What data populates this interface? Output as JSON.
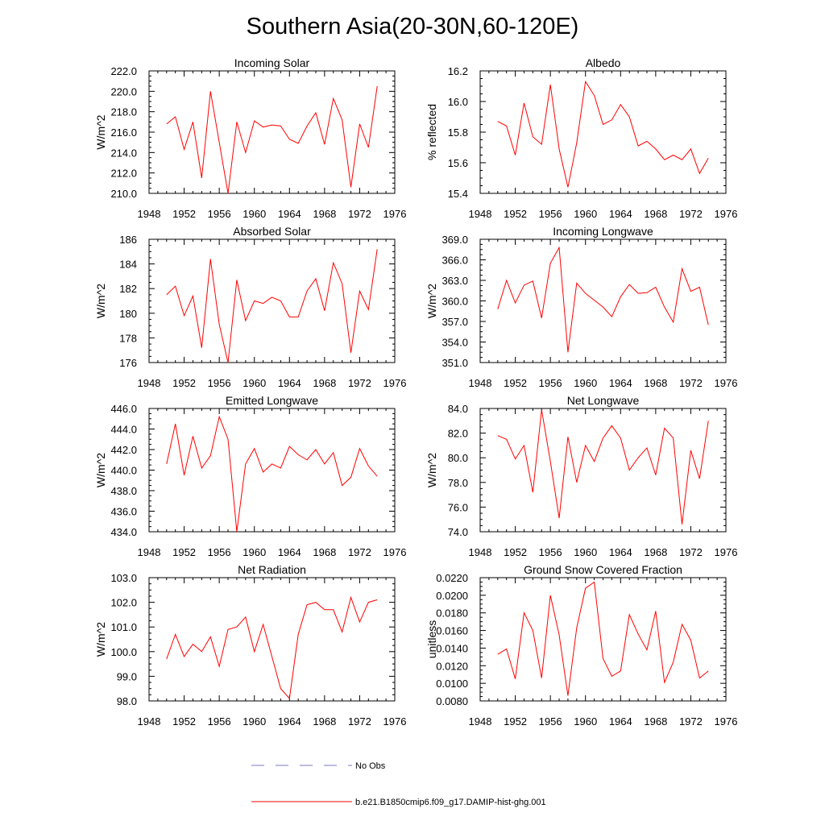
{
  "figure": {
    "title": "Southern Asia(20-30N,60-120E)",
    "legend": {
      "items": [
        {
          "label": "No Obs",
          "style": "dashed",
          "color": "#7777bb"
        },
        {
          "label": "b.e21.B1850cmip6.f09_g17.DAMIP-hist-ghg.001",
          "style": "solid",
          "color": "#ff0000"
        }
      ]
    }
  },
  "chart_data": [
    {
      "type": "line",
      "title": "Incoming Solar",
      "ylabel": "W/m^2",
      "xlim": [
        1948,
        1976
      ],
      "xticks": [
        1948,
        1952,
        1956,
        1960,
        1964,
        1968,
        1972,
        1976
      ],
      "ylim": [
        210,
        222
      ],
      "yticks": [
        "210.0",
        "212.0",
        "214.0",
        "216.0",
        "218.0",
        "220.0",
        "222.0"
      ],
      "x": [
        1950,
        1951,
        1952,
        1953,
        1954,
        1955,
        1956,
        1957,
        1958,
        1959,
        1960,
        1961,
        1962,
        1963,
        1964,
        1965,
        1966,
        1967,
        1968,
        1969,
        1970,
        1971,
        1972,
        1973,
        1974
      ],
      "series": [
        {
          "name": "b.e21.B1850cmip6.f09_g17.DAMIP-hist-ghg.001",
          "color": "#ff0000",
          "values": [
            216.8,
            217.5,
            214.3,
            217.0,
            211.5,
            220.0,
            215.0,
            210.0,
            217.0,
            214.0,
            217.1,
            216.5,
            216.7,
            216.6,
            215.3,
            214.9,
            216.6,
            217.9,
            214.8,
            219.3,
            217.2,
            210.6,
            216.8,
            214.5,
            220.5
          ]
        }
      ]
    },
    {
      "type": "line",
      "title": "Albedo",
      "ylabel": "% reflected",
      "xlim": [
        1948,
        1976
      ],
      "xticks": [
        1948,
        1952,
        1956,
        1960,
        1964,
        1968,
        1972,
        1976
      ],
      "ylim": [
        15.4,
        16.2
      ],
      "yticks": [
        "15.4",
        "15.6",
        "15.8",
        "16.0",
        "16.2"
      ],
      "x": [
        1950,
        1951,
        1952,
        1953,
        1954,
        1955,
        1956,
        1957,
        1958,
        1959,
        1960,
        1961,
        1962,
        1963,
        1964,
        1965,
        1966,
        1967,
        1968,
        1969,
        1970,
        1971,
        1972,
        1973,
        1974
      ],
      "series": [
        {
          "name": "b.e21.B1850cmip6.f09_g17.DAMIP-hist-ghg.001",
          "color": "#ff0000",
          "values": [
            15.87,
            15.84,
            15.65,
            15.99,
            15.77,
            15.72,
            16.11,
            15.69,
            15.44,
            15.73,
            16.13,
            16.04,
            15.85,
            15.88,
            15.98,
            15.9,
            15.71,
            15.74,
            15.69,
            15.62,
            15.65,
            15.62,
            15.69,
            15.53,
            15.63
          ]
        }
      ]
    },
    {
      "type": "line",
      "title": "Absorbed Solar",
      "ylabel": "W/m^2",
      "xlim": [
        1948,
        1976
      ],
      "xticks": [
        1948,
        1952,
        1956,
        1960,
        1964,
        1968,
        1972,
        1976
      ],
      "ylim": [
        176,
        186
      ],
      "yticks": [
        "176",
        "178",
        "180",
        "182",
        "184",
        "186"
      ],
      "x": [
        1950,
        1951,
        1952,
        1953,
        1954,
        1955,
        1956,
        1957,
        1958,
        1959,
        1960,
        1961,
        1962,
        1963,
        1964,
        1965,
        1966,
        1967,
        1968,
        1969,
        1970,
        1971,
        1972,
        1973,
        1974
      ],
      "series": [
        {
          "name": "b.e21.B1850cmip6.f09_g17.DAMIP-hist-ghg.001",
          "color": "#ff0000",
          "values": [
            181.5,
            182.2,
            179.8,
            181.4,
            177.2,
            184.4,
            179.1,
            176.0,
            182.7,
            179.4,
            181.0,
            180.8,
            181.3,
            181.0,
            179.7,
            179.7,
            181.8,
            182.8,
            180.2,
            184.1,
            182.4,
            176.8,
            181.8,
            180.3,
            185.2
          ]
        }
      ]
    },
    {
      "type": "line",
      "title": "Incoming Longwave",
      "ylabel": "W/m^2",
      "xlim": [
        1948,
        1976
      ],
      "xticks": [
        1948,
        1952,
        1956,
        1960,
        1964,
        1968,
        1972,
        1976
      ],
      "ylim": [
        351,
        369
      ],
      "yticks": [
        "351.0",
        "354.0",
        "357.0",
        "360.0",
        "363.0",
        "366.0",
        "369.0"
      ],
      "x": [
        1950,
        1951,
        1952,
        1953,
        1954,
        1955,
        1956,
        1957,
        1958,
        1959,
        1960,
        1961,
        1962,
        1963,
        1964,
        1965,
        1966,
        1967,
        1968,
        1969,
        1970,
        1971,
        1972,
        1973,
        1974
      ],
      "series": [
        {
          "name": "b.e21.B1850cmip6.f09_g17.DAMIP-hist-ghg.001",
          "color": "#ff0000",
          "values": [
            358.8,
            363.0,
            359.7,
            362.3,
            362.9,
            357.5,
            365.5,
            367.8,
            352.5,
            362.6,
            361.1,
            360.1,
            359.1,
            357.7,
            360.6,
            362.4,
            361.1,
            361.2,
            362.0,
            359.1,
            356.9,
            364.7,
            361.4,
            362.0,
            356.5
          ]
        }
      ]
    },
    {
      "type": "line",
      "title": "Emitted Longwave",
      "ylabel": "W/m^2",
      "xlim": [
        1948,
        1976
      ],
      "xticks": [
        1948,
        1952,
        1956,
        1960,
        1964,
        1968,
        1972,
        1976
      ],
      "ylim": [
        434,
        446
      ],
      "yticks": [
        "434.0",
        "436.0",
        "438.0",
        "440.0",
        "442.0",
        "444.0",
        "446.0"
      ],
      "x": [
        1950,
        1951,
        1952,
        1953,
        1954,
        1955,
        1956,
        1957,
        1958,
        1959,
        1960,
        1961,
        1962,
        1963,
        1964,
        1965,
        1966,
        1967,
        1968,
        1969,
        1970,
        1971,
        1972,
        1973,
        1974
      ],
      "series": [
        {
          "name": "b.e21.B1850cmip6.f09_g17.DAMIP-hist-ghg.001",
          "color": "#ff0000",
          "values": [
            440.6,
            444.5,
            439.5,
            443.3,
            440.2,
            441.4,
            445.2,
            443.0,
            434.0,
            440.6,
            442.1,
            439.8,
            440.6,
            440.2,
            442.3,
            441.5,
            441.0,
            442.0,
            440.6,
            441.7,
            438.5,
            439.3,
            442.1,
            440.4,
            439.4
          ]
        }
      ]
    },
    {
      "type": "line",
      "title": "Net Longwave",
      "ylabel": "W/m^2",
      "xlim": [
        1948,
        1976
      ],
      "xticks": [
        1948,
        1952,
        1956,
        1960,
        1964,
        1968,
        1972,
        1976
      ],
      "ylim": [
        74,
        84
      ],
      "yticks": [
        "74.0",
        "76.0",
        "78.0",
        "80.0",
        "82.0",
        "84.0"
      ],
      "x": [
        1950,
        1951,
        1952,
        1953,
        1954,
        1955,
        1956,
        1957,
        1958,
        1959,
        1960,
        1961,
        1962,
        1963,
        1964,
        1965,
        1966,
        1967,
        1968,
        1969,
        1970,
        1971,
        1972,
        1973,
        1974
      ],
      "series": [
        {
          "name": "b.e21.B1850cmip6.f09_g17.DAMIP-hist-ghg.001",
          "color": "#ff0000",
          "values": [
            81.8,
            81.5,
            79.9,
            81.0,
            77.2,
            83.9,
            79.7,
            75.1,
            81.7,
            78.0,
            81.0,
            79.7,
            81.6,
            82.6,
            81.6,
            79.0,
            80.0,
            80.8,
            78.6,
            82.4,
            81.6,
            74.6,
            80.6,
            78.3,
            83.0
          ]
        }
      ]
    },
    {
      "type": "line",
      "title": "Net Radiation",
      "ylabel": "W/m^2",
      "xlim": [
        1948,
        1976
      ],
      "xticks": [
        1948,
        1952,
        1956,
        1960,
        1964,
        1968,
        1972,
        1976
      ],
      "ylim": [
        98,
        103
      ],
      "yticks": [
        "98.0",
        "99.0",
        "100.0",
        "101.0",
        "102.0",
        "103.0"
      ],
      "x": [
        1950,
        1951,
        1952,
        1953,
        1954,
        1955,
        1956,
        1957,
        1958,
        1959,
        1960,
        1961,
        1962,
        1963,
        1964,
        1965,
        1966,
        1967,
        1968,
        1969,
        1970,
        1971,
        1972,
        1973,
        1974
      ],
      "series": [
        {
          "name": "b.e21.B1850cmip6.f09_g17.DAMIP-hist-ghg.001",
          "color": "#ff0000",
          "values": [
            99.7,
            100.7,
            99.8,
            100.3,
            100.0,
            100.6,
            99.4,
            100.9,
            101.0,
            101.4,
            100.0,
            101.1,
            99.8,
            98.5,
            98.1,
            100.7,
            101.9,
            102.0,
            101.7,
            101.7,
            100.8,
            102.2,
            101.2,
            102.0,
            102.1
          ]
        }
      ]
    },
    {
      "type": "line",
      "title": "Ground Snow Covered Fraction",
      "ylabel": "unitless",
      "xlim": [
        1948,
        1976
      ],
      "xticks": [
        1948,
        1952,
        1956,
        1960,
        1964,
        1968,
        1972,
        1976
      ],
      "ylim": [
        0.008,
        0.022
      ],
      "yticks": [
        "0.0080",
        "0.0100",
        "0.0120",
        "0.0140",
        "0.0160",
        "0.0180",
        "0.0200",
        "0.0220"
      ],
      "x": [
        1950,
        1951,
        1952,
        1953,
        1954,
        1955,
        1956,
        1957,
        1958,
        1959,
        1960,
        1961,
        1962,
        1963,
        1964,
        1965,
        1966,
        1967,
        1968,
        1969,
        1970,
        1971,
        1972,
        1973,
        1974
      ],
      "series": [
        {
          "name": "b.e21.B1850cmip6.f09_g17.DAMIP-hist-ghg.001",
          "color": "#ff0000",
          "values": [
            0.0133,
            0.0139,
            0.0105,
            0.018,
            0.016,
            0.0106,
            0.02,
            0.0155,
            0.0086,
            0.0163,
            0.0208,
            0.0215,
            0.0128,
            0.0108,
            0.0114,
            0.0178,
            0.0156,
            0.0138,
            0.0182,
            0.0101,
            0.0124,
            0.0167,
            0.0149,
            0.0106,
            0.0114
          ]
        }
      ]
    }
  ]
}
